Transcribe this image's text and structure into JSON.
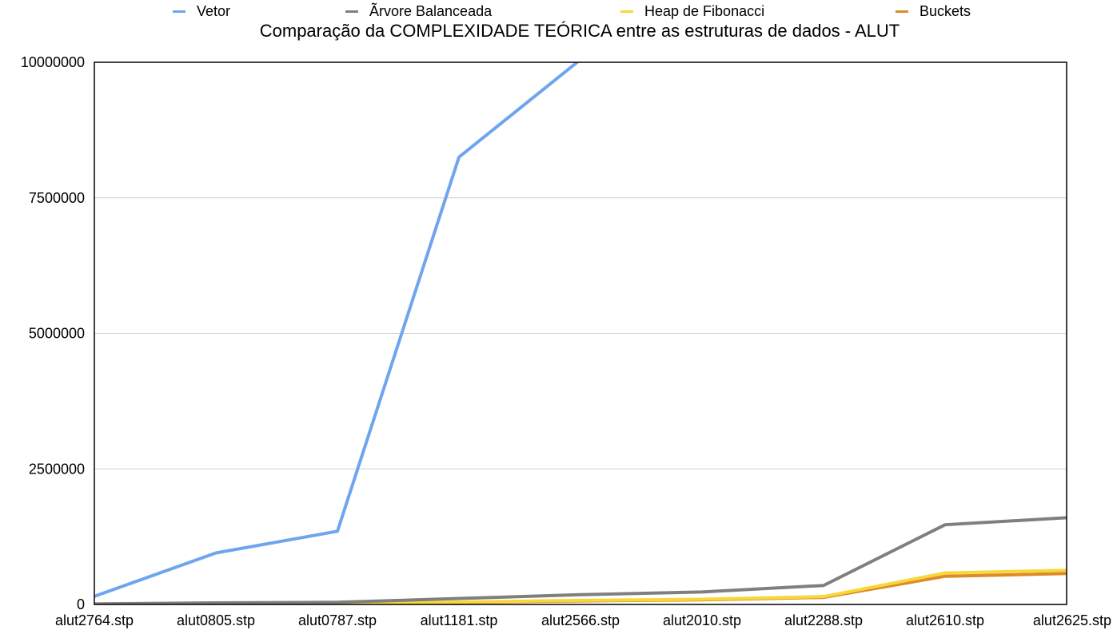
{
  "chart_data": {
    "type": "line",
    "title": "Comparação da COMPLEXIDADE TEÓRICA entre as estruturas de dados  - ALUT",
    "xlabel": "",
    "ylabel": "",
    "categories": [
      "alut2764.stp",
      "alut0805.stp",
      "alut0787.stp",
      "alut1181.stp",
      "alut2566.stp",
      "alut2010.stp",
      "alut2288.stp",
      "alut2610.stp",
      "alut2625.stp"
    ],
    "ylim": [
      0,
      10000000
    ],
    "yticks": [
      0,
      2500000,
      5000000,
      7500000,
      10000000
    ],
    "ytick_labels": [
      "0",
      "2500000",
      "5000000",
      "7500000",
      "10000000"
    ],
    "grid": true,
    "legend_position": "top",
    "series": [
      {
        "name": "Vetor",
        "color": "#6fa5ee",
        "values": [
          150000,
          950000,
          1350000,
          8250000,
          10050000,
          null,
          null,
          null,
          null
        ]
      },
      {
        "name": "Ãrvore Balanceada",
        "color": "#7f7f7f",
        "values": [
          10000,
          30000,
          40000,
          110000,
          180000,
          230000,
          350000,
          1470000,
          1600000
        ]
      },
      {
        "name": "Heap de Fibonacci",
        "color": "#f7d838",
        "values": [
          2000,
          8000,
          12000,
          45000,
          75000,
          95000,
          145000,
          580000,
          630000
        ]
      },
      {
        "name": "Buckets",
        "color": "#dc8a2a",
        "values": [
          1500,
          6000,
          10000,
          38000,
          65000,
          85000,
          130000,
          520000,
          570000
        ]
      }
    ]
  }
}
